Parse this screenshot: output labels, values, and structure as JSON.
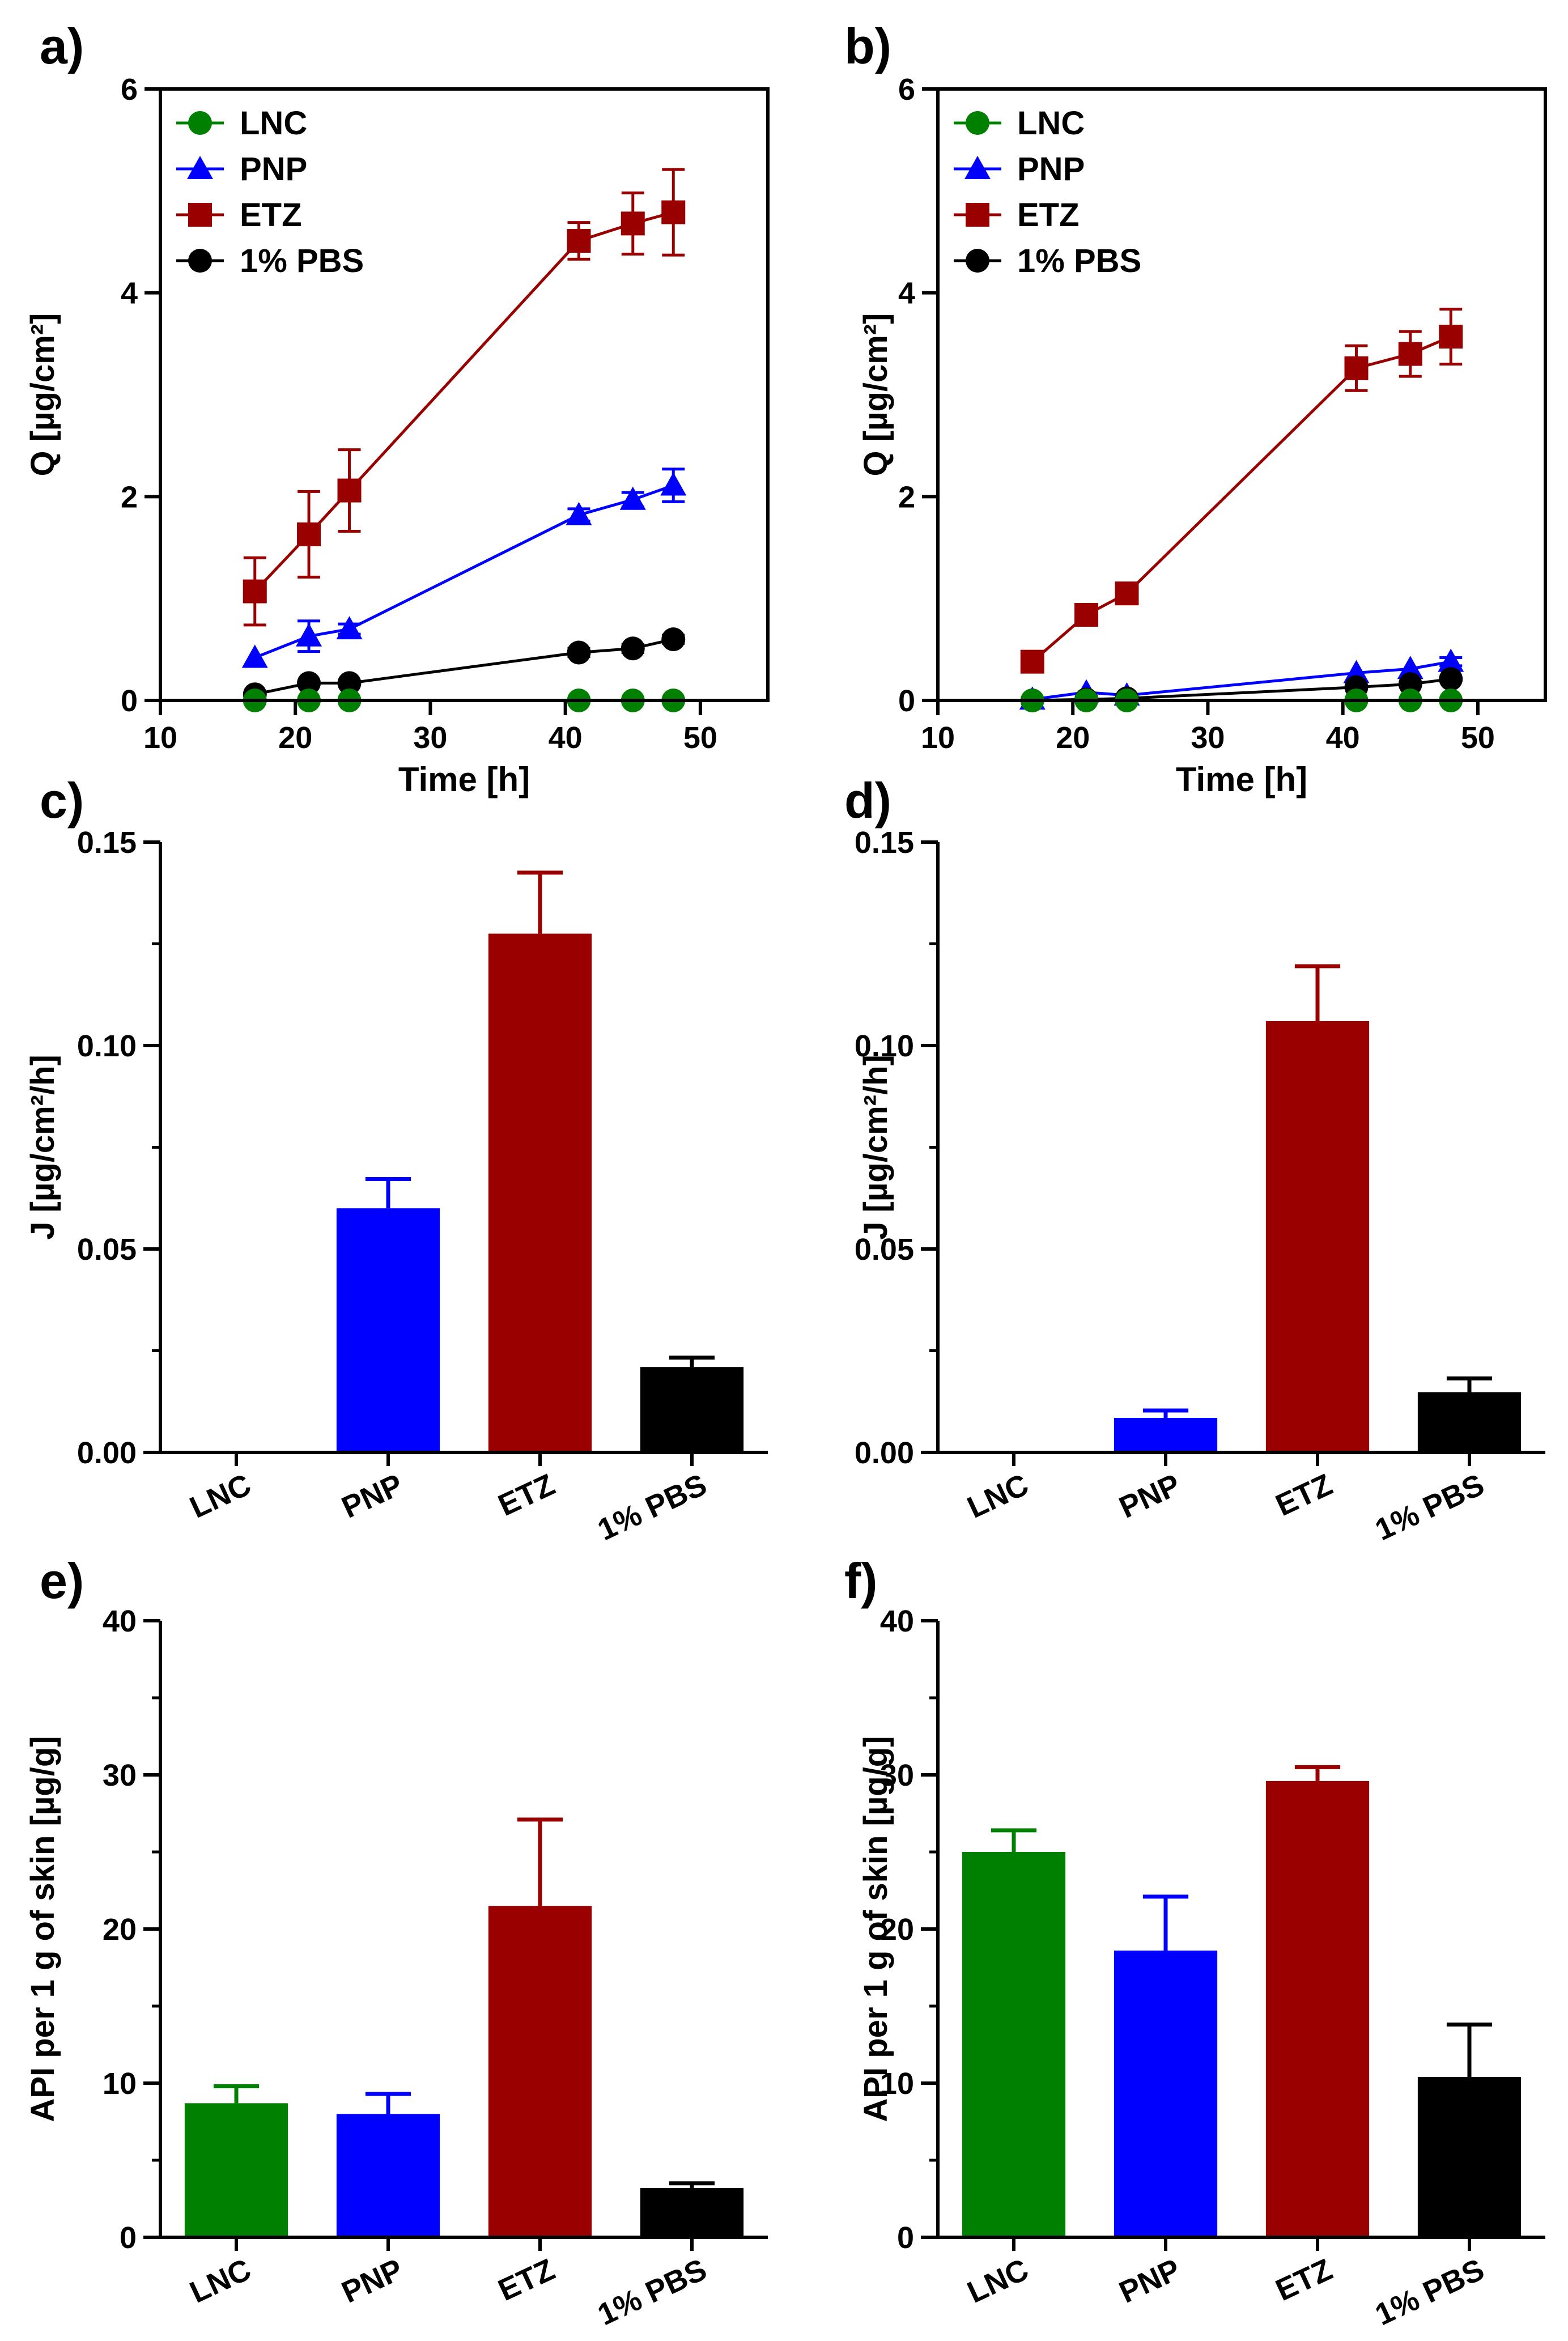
{
  "colors": {
    "LNC": "#008000",
    "PNP": "#0000ff",
    "ETZ": "#990000",
    "PBS": "#000000"
  },
  "chart_data": [
    {
      "panel": "a)",
      "type": "line",
      "xlabel": "Time [h]",
      "ylabel": "Q [µg/cm²]",
      "xlim": [
        10,
        55
      ],
      "ylim": [
        0,
        6
      ],
      "xticks": [
        "10",
        "20",
        "30",
        "40",
        "50"
      ],
      "yticks": [
        "0",
        "2",
        "4",
        "6"
      ],
      "legend_position": "top-left",
      "x": [
        17,
        21,
        24,
        41,
        45,
        48
      ],
      "series": [
        {
          "name": "LNC",
          "marker": "circle",
          "values": [
            0,
            0,
            0,
            0,
            0,
            0
          ],
          "errors": [
            0,
            0,
            0,
            0,
            0,
            0
          ]
        },
        {
          "name": "PNP",
          "marker": "triangle",
          "values": [
            0.42,
            0.63,
            0.7,
            1.82,
            1.97,
            2.11
          ],
          "errors": [
            0.02,
            0.15,
            0.05,
            0.06,
            0.07,
            0.16
          ]
        },
        {
          "name": "ETZ",
          "marker": "square",
          "values": [
            1.07,
            1.63,
            2.06,
            4.51,
            4.68,
            4.79
          ],
          "errors": [
            0.33,
            0.42,
            0.4,
            0.18,
            0.3,
            0.42
          ]
        },
        {
          "name": "1% PBS",
          "marker": "circle",
          "values": [
            0.06,
            0.17,
            0.17,
            0.47,
            0.51,
            0.6
          ],
          "errors": [
            0.01,
            0.02,
            0.02,
            0.04,
            0.04,
            0.04
          ]
        }
      ]
    },
    {
      "panel": "b)",
      "type": "line",
      "xlabel": "Time [h]",
      "ylabel": "Q [µg/cm²]",
      "xlim": [
        10,
        55
      ],
      "ylim": [
        0,
        6
      ],
      "xticks": [
        "10",
        "20",
        "30",
        "40",
        "50"
      ],
      "yticks": [
        "0",
        "2",
        "4",
        "6"
      ],
      "legend_position": "top-left",
      "x": [
        17,
        21,
        24,
        41,
        45,
        48
      ],
      "series": [
        {
          "name": "LNC",
          "marker": "circle",
          "values": [
            0,
            0,
            0,
            0,
            0,
            0
          ],
          "errors": [
            0,
            0,
            0,
            0,
            0,
            0
          ]
        },
        {
          "name": "PNP",
          "marker": "triangle",
          "values": [
            0.01,
            0.08,
            0.05,
            0.27,
            0.31,
            0.38
          ],
          "errors": [
            0.01,
            0.02,
            0.02,
            0.03,
            0.03,
            0.04
          ]
        },
        {
          "name": "ETZ",
          "marker": "square",
          "values": [
            0.38,
            0.84,
            1.05,
            3.26,
            3.4,
            3.57
          ],
          "errors": [
            0.04,
            0.05,
            0.05,
            0.22,
            0.22,
            0.27
          ]
        },
        {
          "name": "1% PBS",
          "marker": "circle",
          "values": [
            0.0,
            0.01,
            0.02,
            0.13,
            0.16,
            0.21
          ],
          "errors": [
            0.01,
            0.01,
            0.01,
            0.02,
            0.02,
            0.03
          ]
        }
      ]
    },
    {
      "panel": "c)",
      "type": "bar",
      "ylabel": "J [µg/cm²/h]",
      "ylim": [
        0,
        0.15
      ],
      "yticks": [
        "0.00",
        "0.05",
        "0.10",
        "0.15"
      ],
      "categories": [
        "LNC",
        "PNP",
        "ETZ",
        "1% PBS"
      ],
      "values": [
        0,
        0.06,
        0.1275,
        0.021
      ],
      "errors": [
        0,
        0.0072,
        0.015,
        0.0023
      ]
    },
    {
      "panel": "d)",
      "type": "bar",
      "ylabel": "J [µg/cm²/h]",
      "ylim": [
        0,
        0.15
      ],
      "yticks": [
        "0.00",
        "0.05",
        "0.10",
        "0.15"
      ],
      "categories": [
        "LNC",
        "PNP",
        "ETZ",
        "1% PBS"
      ],
      "values": [
        0,
        0.0085,
        0.106,
        0.0148
      ],
      "errors": [
        0,
        0.0018,
        0.0135,
        0.0034
      ]
    },
    {
      "panel": "e)",
      "type": "bar",
      "ylabel": "API per 1 g of skin [µg/g]",
      "ylim": [
        0,
        40
      ],
      "yticks": [
        "0",
        "10",
        "20",
        "30",
        "40"
      ],
      "categories": [
        "LNC",
        "PNP",
        "ETZ",
        "1% PBS"
      ],
      "values": [
        8.7,
        8.0,
        21.5,
        3.2
      ],
      "errors": [
        1.1,
        1.3,
        5.6,
        0.3
      ]
    },
    {
      "panel": "f)",
      "type": "bar",
      "ylabel": "API per 1 g of skin [µg/g]",
      "ylim": [
        0,
        40
      ],
      "yticks": [
        "0",
        "10",
        "20",
        "30",
        "40"
      ],
      "categories": [
        "LNC",
        "PNP",
        "ETZ",
        "1% PBS"
      ],
      "values": [
        25.0,
        18.6,
        29.6,
        10.4
      ],
      "errors": [
        1.4,
        3.5,
        0.9,
        3.4
      ]
    }
  ]
}
